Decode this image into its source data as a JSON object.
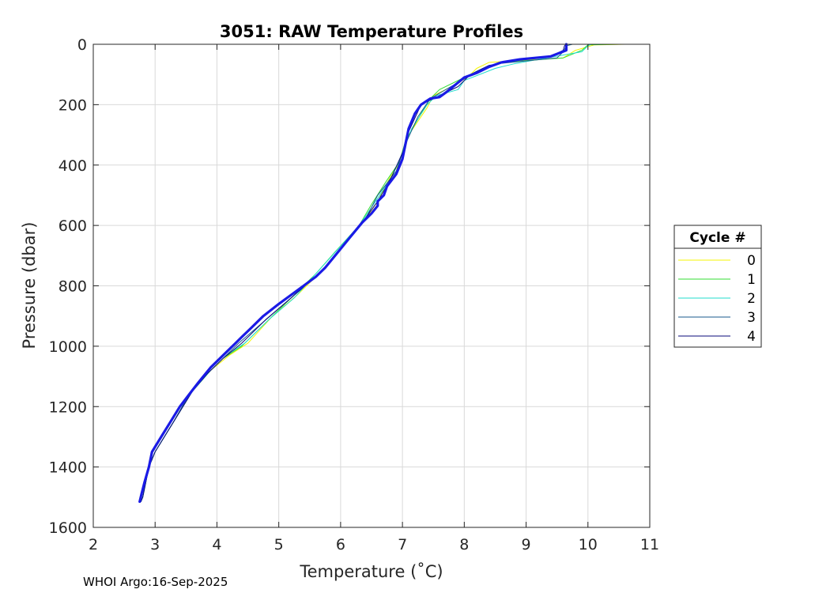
{
  "chart_data": {
    "type": "line",
    "title": "3051: RAW Temperature Profiles",
    "xlabel": "Temperature (˚C)",
    "ylabel": "Pressure (dbar)",
    "xlim": [
      2,
      11
    ],
    "ylim": [
      0,
      1600
    ],
    "y_reversed": true,
    "grid": true,
    "x_ticks": [
      "2",
      "3",
      "4",
      "5",
      "6",
      "7",
      "8",
      "9",
      "10",
      "11"
    ],
    "y_ticks": [
      "0",
      "200",
      "400",
      "600",
      "800",
      "1000",
      "1200",
      "1400",
      "1600"
    ],
    "legend": {
      "title": "Cycle #",
      "placement": "outside-right"
    },
    "footer": "WHOI Argo:16-Sep-2025",
    "series": [
      {
        "name": "0",
        "color": "#f5f500",
        "points": [
          [
            10.6,
            0
          ],
          [
            10.1,
            2
          ],
          [
            9.8,
            20
          ],
          [
            9.6,
            45
          ],
          [
            8.4,
            60
          ],
          [
            8.2,
            80
          ],
          [
            8.1,
            100
          ],
          [
            7.9,
            130
          ],
          [
            7.5,
            170
          ],
          [
            7.4,
            210
          ],
          [
            7.1,
            300
          ],
          [
            7.0,
            380
          ],
          [
            6.8,
            440
          ],
          [
            6.6,
            520
          ],
          [
            6.4,
            580
          ],
          [
            6.0,
            680
          ],
          [
            5.7,
            750
          ],
          [
            5.3,
            830
          ],
          [
            4.9,
            900
          ],
          [
            4.5,
            990
          ],
          [
            4.2,
            1030
          ],
          [
            3.9,
            1080
          ],
          [
            3.6,
            1150
          ],
          [
            3.3,
            1250
          ],
          [
            3.0,
            1350
          ],
          [
            2.9,
            1400
          ],
          [
            2.8,
            1500
          ],
          [
            2.78,
            1510
          ]
        ]
      },
      {
        "name": "1",
        "color": "#33dd33",
        "points": [
          [
            10.5,
            0
          ],
          [
            10.0,
            2
          ],
          [
            9.9,
            20
          ],
          [
            9.6,
            45
          ],
          [
            8.6,
            60
          ],
          [
            8.3,
            80
          ],
          [
            8.0,
            110
          ],
          [
            7.6,
            150
          ],
          [
            7.45,
            180
          ],
          [
            7.3,
            230
          ],
          [
            7.05,
            320
          ],
          [
            6.95,
            390
          ],
          [
            6.75,
            450
          ],
          [
            6.5,
            530
          ],
          [
            6.3,
            600
          ],
          [
            5.9,
            690
          ],
          [
            5.6,
            760
          ],
          [
            5.2,
            840
          ],
          [
            4.8,
            920
          ],
          [
            4.4,
            1000
          ],
          [
            4.1,
            1040
          ],
          [
            3.85,
            1090
          ],
          [
            3.55,
            1160
          ],
          [
            3.3,
            1250
          ],
          [
            3.0,
            1350
          ],
          [
            2.9,
            1400
          ],
          [
            2.8,
            1500
          ],
          [
            2.77,
            1515
          ]
        ]
      },
      {
        "name": "2",
        "color": "#22ddcc",
        "points": [
          [
            10.05,
            0
          ],
          [
            10.0,
            5
          ],
          [
            9.9,
            25
          ],
          [
            9.2,
            50
          ],
          [
            8.8,
            65
          ],
          [
            8.5,
            80
          ],
          [
            8.0,
            120
          ],
          [
            7.9,
            150
          ],
          [
            7.55,
            170
          ],
          [
            7.4,
            200
          ],
          [
            7.15,
            280
          ],
          [
            7.0,
            360
          ],
          [
            6.85,
            430
          ],
          [
            6.6,
            510
          ],
          [
            6.3,
            600
          ],
          [
            5.95,
            680
          ],
          [
            5.6,
            760
          ],
          [
            5.25,
            840
          ],
          [
            4.85,
            910
          ],
          [
            4.45,
            990
          ],
          [
            4.15,
            1030
          ],
          [
            3.9,
            1080
          ],
          [
            3.6,
            1150
          ],
          [
            3.3,
            1250
          ],
          [
            3.0,
            1350
          ],
          [
            2.9,
            1400
          ],
          [
            2.8,
            1500
          ],
          [
            2.77,
            1515
          ]
        ]
      },
      {
        "name": "3",
        "color": "#1a5a8c",
        "points": [
          [
            9.75,
            0
          ],
          [
            9.65,
            5
          ],
          [
            9.6,
            25
          ],
          [
            9.5,
            45
          ],
          [
            8.5,
            65
          ],
          [
            8.2,
            90
          ],
          [
            8.0,
            115
          ],
          [
            7.7,
            150
          ],
          [
            7.45,
            180
          ],
          [
            7.25,
            240
          ],
          [
            7.05,
            330
          ],
          [
            6.9,
            420
          ],
          [
            6.6,
            500
          ],
          [
            6.4,
            580
          ],
          [
            6.0,
            680
          ],
          [
            5.65,
            760
          ],
          [
            5.2,
            840
          ],
          [
            4.75,
            920
          ],
          [
            4.35,
            990
          ],
          [
            4.1,
            1040
          ],
          [
            3.85,
            1090
          ],
          [
            3.55,
            1160
          ],
          [
            3.3,
            1250
          ],
          [
            3.0,
            1350
          ],
          [
            2.9,
            1400
          ],
          [
            2.8,
            1500
          ],
          [
            2.77,
            1515
          ]
        ]
      },
      {
        "name": "4",
        "color": "#0a0a7a",
        "points": [
          [
            9.65,
            0
          ],
          [
            9.62,
            5
          ],
          [
            9.6,
            20
          ],
          [
            9.4,
            40
          ],
          [
            8.8,
            55
          ],
          [
            8.4,
            70
          ],
          [
            8.1,
            100
          ],
          [
            7.9,
            140
          ],
          [
            7.6,
            170
          ],
          [
            7.3,
            200
          ],
          [
            7.1,
            290
          ],
          [
            7.0,
            360
          ],
          [
            6.8,
            450
          ],
          [
            6.6,
            520
          ],
          [
            6.35,
            590
          ],
          [
            6.0,
            680
          ],
          [
            5.65,
            760
          ],
          [
            5.2,
            840
          ],
          [
            4.8,
            910
          ],
          [
            4.4,
            990
          ],
          [
            4.1,
            1040
          ],
          [
            3.85,
            1090
          ],
          [
            3.6,
            1150
          ],
          [
            3.3,
            1250
          ],
          [
            3.0,
            1350
          ],
          [
            2.9,
            1400
          ],
          [
            2.8,
            1500
          ],
          [
            2.77,
            1515
          ]
        ]
      },
      {
        "name": "",
        "color": "#1a1ae6",
        "width": 3.2,
        "points": [
          [
            9.65,
            0
          ],
          [
            9.65,
            20
          ],
          [
            9.4,
            40
          ],
          [
            8.9,
            50
          ],
          [
            8.6,
            60
          ],
          [
            8.4,
            75
          ],
          [
            8.2,
            95
          ],
          [
            8.0,
            110
          ],
          [
            7.85,
            135
          ],
          [
            7.7,
            160
          ],
          [
            7.6,
            175
          ],
          [
            7.45,
            180
          ],
          [
            7.3,
            200
          ],
          [
            7.2,
            230
          ],
          [
            7.1,
            280
          ],
          [
            7.05,
            330
          ],
          [
            7.0,
            380
          ],
          [
            6.9,
            430
          ],
          [
            6.75,
            470
          ],
          [
            6.7,
            500
          ],
          [
            6.6,
            520
          ],
          [
            6.6,
            535
          ],
          [
            6.5,
            560
          ],
          [
            6.35,
            590
          ],
          [
            6.15,
            640
          ],
          [
            5.95,
            690
          ],
          [
            5.75,
            740
          ],
          [
            5.6,
            770
          ],
          [
            5.4,
            800
          ],
          [
            5.2,
            830
          ],
          [
            5.0,
            860
          ],
          [
            4.75,
            900
          ],
          [
            4.55,
            940
          ],
          [
            4.4,
            970
          ],
          [
            4.3,
            990
          ],
          [
            4.1,
            1030
          ],
          [
            3.9,
            1070
          ],
          [
            3.7,
            1120
          ],
          [
            3.55,
            1160
          ],
          [
            3.4,
            1200
          ],
          [
            3.25,
            1250
          ],
          [
            3.1,
            1300
          ],
          [
            2.95,
            1350
          ],
          [
            2.9,
            1400
          ],
          [
            2.83,
            1450
          ],
          [
            2.78,
            1490
          ],
          [
            2.75,
            1515
          ]
        ]
      }
    ]
  }
}
